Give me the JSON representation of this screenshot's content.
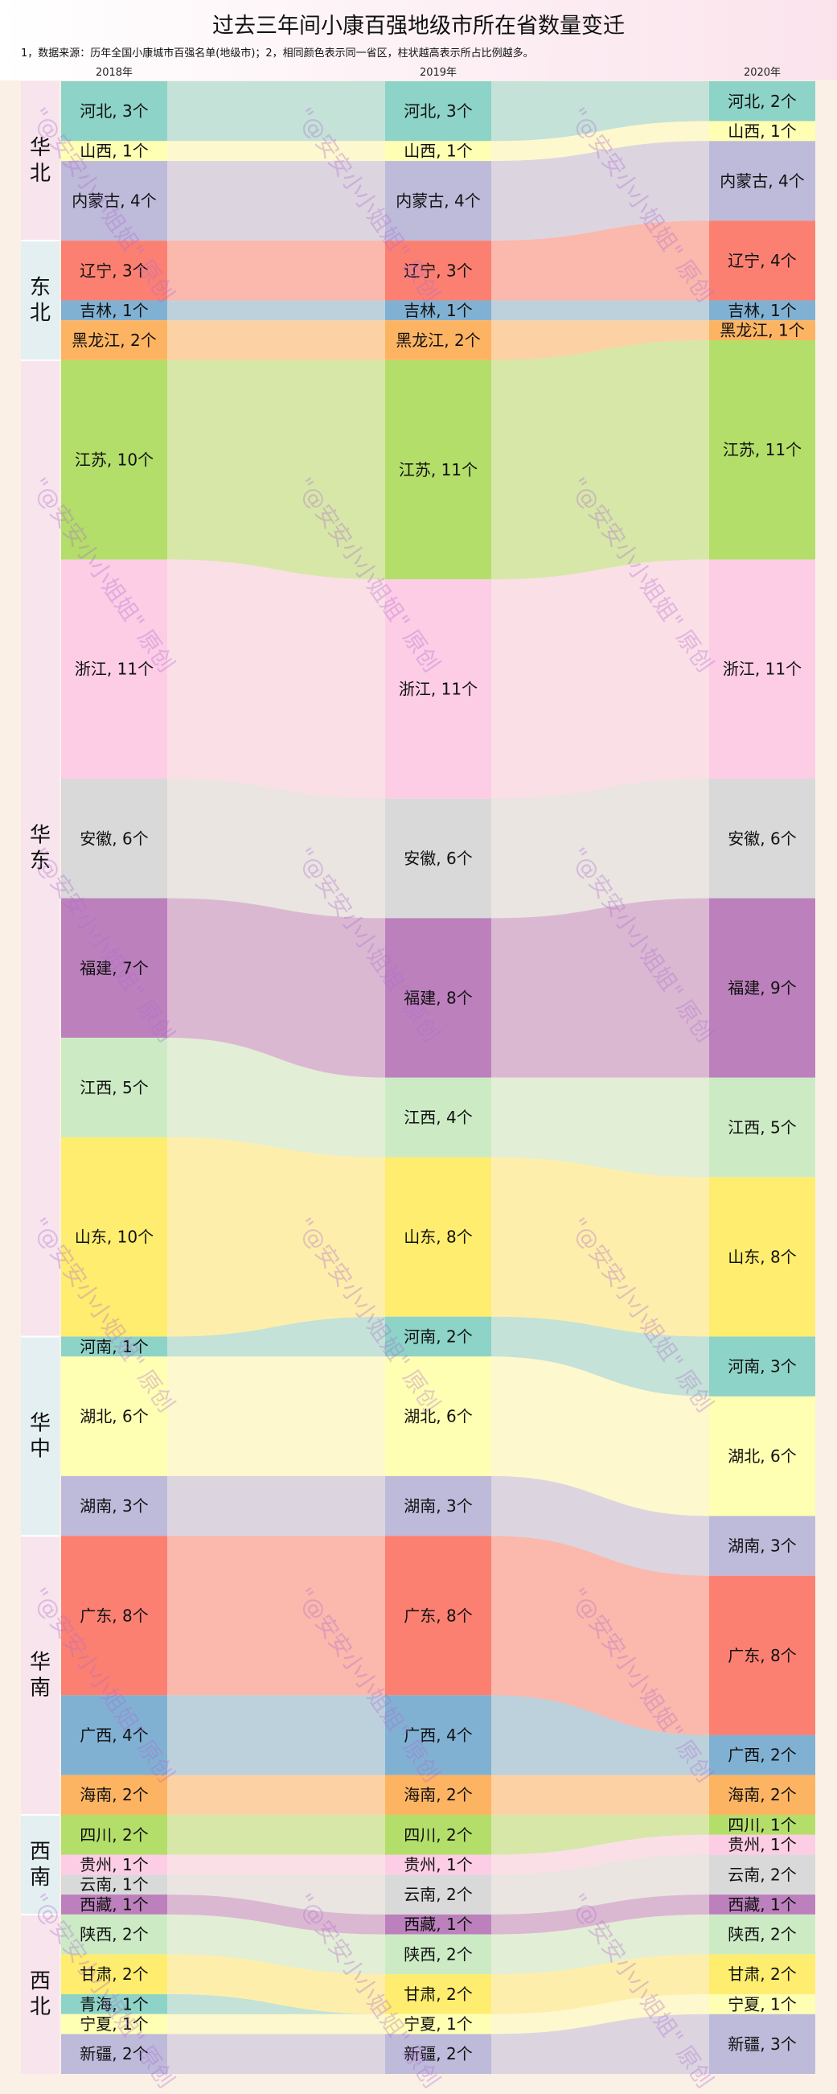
{
  "title": "过去三年间小康百强地级市所在省数量变迁",
  "note": "1，数据来源：历年全国小康城市百强名单(地级市)；2，相同颜色表示同一省区，柱状越高表示所占比例越多。",
  "watermark": "\"@安安小小姐姐\" 原创",
  "chart_data": {
    "type": "sankey",
    "title": "过去三年间小康百强地级市所在省数量变迁",
    "years": [
      "2018年",
      "2019年",
      "2020年"
    ],
    "unit": "个",
    "regions": [
      {
        "name": "华北",
        "provinces": [
          "河北",
          "山西",
          "内蒙古"
        ]
      },
      {
        "name": "东北",
        "provinces": [
          "辽宁",
          "吉林",
          "黑龙江"
        ]
      },
      {
        "name": "华东",
        "provinces": [
          "江苏",
          "浙江",
          "安徽",
          "福建",
          "江西",
          "山东"
        ]
      },
      {
        "name": "华中",
        "provinces": [
          "河南",
          "湖北",
          "湖南"
        ]
      },
      {
        "name": "华南",
        "provinces": [
          "广东",
          "广西",
          "海南"
        ]
      },
      {
        "name": "西南",
        "provinces": [
          "四川",
          "贵州",
          "云南",
          "西藏"
        ]
      },
      {
        "name": "西北",
        "provinces": [
          "陕西",
          "甘肃",
          "青海",
          "宁夏",
          "新疆"
        ]
      }
    ],
    "provinces": [
      {
        "name": "河北",
        "color": "#8dd3c7",
        "values": [
          3,
          3,
          2
        ]
      },
      {
        "name": "山西",
        "color": "#ffffb3",
        "values": [
          1,
          1,
          1
        ]
      },
      {
        "name": "内蒙古",
        "color": "#bebada",
        "values": [
          4,
          4,
          4
        ]
      },
      {
        "name": "辽宁",
        "color": "#fb8072",
        "values": [
          3,
          3,
          4
        ]
      },
      {
        "name": "吉林",
        "color": "#80b1d3",
        "values": [
          1,
          1,
          1
        ]
      },
      {
        "name": "黑龙江",
        "color": "#fdb462",
        "values": [
          2,
          2,
          1
        ]
      },
      {
        "name": "江苏",
        "color": "#b3de69",
        "values": [
          10,
          11,
          11
        ]
      },
      {
        "name": "浙江",
        "color": "#fccde5",
        "values": [
          11,
          11,
          11
        ]
      },
      {
        "name": "安徽",
        "color": "#d9d9d9",
        "values": [
          6,
          6,
          6
        ]
      },
      {
        "name": "福建",
        "color": "#bc80bd",
        "values": [
          7,
          8,
          9
        ]
      },
      {
        "name": "江西",
        "color": "#ccebc5",
        "values": [
          5,
          4,
          5
        ]
      },
      {
        "name": "山东",
        "color": "#ffed6f",
        "values": [
          10,
          8,
          8
        ]
      },
      {
        "name": "河南",
        "color": "#8dd3c7",
        "values": [
          1,
          2,
          3
        ]
      },
      {
        "name": "湖北",
        "color": "#ffffb3",
        "values": [
          6,
          6,
          6
        ]
      },
      {
        "name": "湖南",
        "color": "#bebada",
        "values": [
          3,
          3,
          3
        ]
      },
      {
        "name": "广东",
        "color": "#fb8072",
        "values": [
          8,
          8,
          8
        ]
      },
      {
        "name": "广西",
        "color": "#80b1d3",
        "values": [
          4,
          4,
          2
        ]
      },
      {
        "name": "海南",
        "color": "#fdb462",
        "values": [
          2,
          2,
          2
        ]
      },
      {
        "name": "四川",
        "color": "#b3de69",
        "values": [
          2,
          2,
          1
        ]
      },
      {
        "name": "贵州",
        "color": "#fccde5",
        "values": [
          1,
          1,
          1
        ]
      },
      {
        "name": "云南",
        "color": "#d9d9d9",
        "values": [
          1,
          2,
          2
        ]
      },
      {
        "name": "西藏",
        "color": "#bc80bd",
        "values": [
          1,
          1,
          1
        ]
      },
      {
        "name": "陕西",
        "color": "#ccebc5",
        "values": [
          2,
          2,
          2
        ]
      },
      {
        "name": "甘肃",
        "color": "#ffed6f",
        "values": [
          2,
          2,
          2
        ]
      },
      {
        "name": "青海",
        "color": "#8dd3c7",
        "values": [
          1,
          0,
          0
        ]
      },
      {
        "name": "宁夏",
        "color": "#ffffb3",
        "values": [
          1,
          1,
          1
        ]
      },
      {
        "name": "新疆",
        "color": "#bebada",
        "values": [
          2,
          2,
          3
        ]
      }
    ]
  }
}
